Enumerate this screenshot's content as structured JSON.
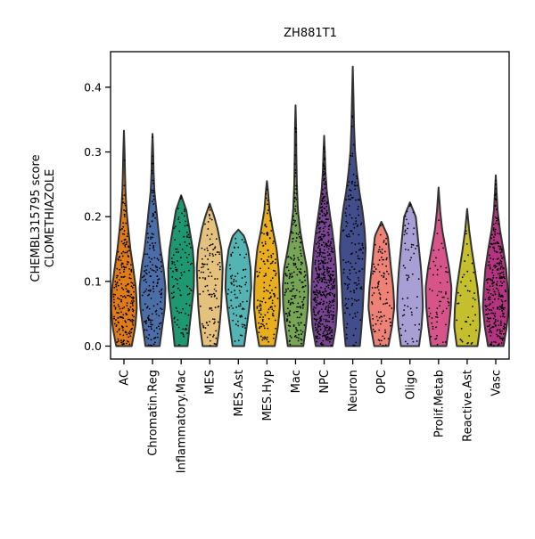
{
  "chart_data": {
    "type": "violin",
    "title": "ZH881T1",
    "ylabel_line1": "CHEMBL315795 score",
    "ylabel_line2": "CLOMETHIAZOLE",
    "xlabel": "",
    "ylim": [
      -0.02,
      0.455
    ],
    "yticks": [
      0.0,
      0.1,
      0.2,
      0.3,
      0.4
    ],
    "ytick_labels": [
      "0.0",
      "0.1",
      "0.2",
      "0.3",
      "0.4"
    ],
    "grid": false,
    "legend": "none",
    "categories": [
      "AC",
      "Chromatin.Reg",
      "Inflammatory.Mac",
      "MES",
      "MES.Ast",
      "MES.Hyp",
      "Mac",
      "NPC",
      "Neuron",
      "OPC",
      "Oligo",
      "Prolif.Metab",
      "Reactive.Ast",
      "Vasc"
    ],
    "series": [
      {
        "category": "AC",
        "color": "#e07b1a",
        "min": 0.0,
        "max": 0.333,
        "n_points": 230,
        "density": [
          [
            0.0,
            0.6
          ],
          [
            0.03,
            0.88
          ],
          [
            0.06,
            1.0
          ],
          [
            0.09,
            0.92
          ],
          [
            0.12,
            0.72
          ],
          [
            0.15,
            0.5
          ],
          [
            0.18,
            0.34
          ],
          [
            0.21,
            0.2
          ],
          [
            0.24,
            0.12
          ],
          [
            0.27,
            0.08
          ],
          [
            0.3,
            0.05
          ],
          [
            0.333,
            0.0
          ]
        ]
      },
      {
        "category": "Chromatin.Reg",
        "color": "#4c6ea8",
        "min": 0.0,
        "max": 0.328,
        "n_points": 170,
        "density": [
          [
            0.0,
            0.55
          ],
          [
            0.03,
            0.75
          ],
          [
            0.06,
            0.95
          ],
          [
            0.09,
            1.0
          ],
          [
            0.12,
            0.85
          ],
          [
            0.15,
            0.62
          ],
          [
            0.18,
            0.45
          ],
          [
            0.21,
            0.3
          ],
          [
            0.24,
            0.14
          ],
          [
            0.27,
            0.08
          ],
          [
            0.3,
            0.05
          ],
          [
            0.328,
            0.0
          ]
        ]
      },
      {
        "category": "Inflammatory.Mac",
        "color": "#1e9870",
        "min": 0.0,
        "max": 0.233,
        "n_points": 110,
        "density": [
          [
            0.0,
            0.5
          ],
          [
            0.03,
            0.65
          ],
          [
            0.06,
            0.82
          ],
          [
            0.09,
            0.98
          ],
          [
            0.12,
            1.0
          ],
          [
            0.15,
            0.9
          ],
          [
            0.18,
            0.65
          ],
          [
            0.21,
            0.4
          ],
          [
            0.233,
            0.0
          ]
        ]
      },
      {
        "category": "MES",
        "color": "#e4c17c",
        "min": 0.0,
        "max": 0.22,
        "n_points": 110,
        "density": [
          [
            0.0,
            0.55
          ],
          [
            0.03,
            0.75
          ],
          [
            0.06,
            0.88
          ],
          [
            0.09,
            0.95
          ],
          [
            0.12,
            1.0
          ],
          [
            0.15,
            0.9
          ],
          [
            0.18,
            0.62
          ],
          [
            0.2,
            0.35
          ],
          [
            0.22,
            0.0
          ]
        ]
      },
      {
        "category": "MES.Ast",
        "color": "#54b3b3",
        "min": 0.0,
        "max": 0.18,
        "n_points": 80,
        "density": [
          [
            0.0,
            0.45
          ],
          [
            0.03,
            0.65
          ],
          [
            0.06,
            0.85
          ],
          [
            0.09,
            1.0
          ],
          [
            0.12,
            0.95
          ],
          [
            0.15,
            0.75
          ],
          [
            0.17,
            0.45
          ],
          [
            0.18,
            0.0
          ]
        ]
      },
      {
        "category": "MES.Hyp",
        "color": "#e8ae1e",
        "min": 0.0,
        "max": 0.255,
        "n_points": 140,
        "density": [
          [
            0.0,
            0.6
          ],
          [
            0.03,
            0.85
          ],
          [
            0.06,
            1.0
          ],
          [
            0.09,
            0.98
          ],
          [
            0.12,
            0.9
          ],
          [
            0.15,
            0.75
          ],
          [
            0.18,
            0.45
          ],
          [
            0.21,
            0.2
          ],
          [
            0.24,
            0.08
          ],
          [
            0.255,
            0.0
          ]
        ]
      },
      {
        "category": "Mac",
        "color": "#76a555",
        "min": 0.0,
        "max": 0.372,
        "n_points": 200,
        "density": [
          [
            0.0,
            0.6
          ],
          [
            0.03,
            0.8
          ],
          [
            0.06,
            0.95
          ],
          [
            0.09,
            1.0
          ],
          [
            0.12,
            0.88
          ],
          [
            0.15,
            0.6
          ],
          [
            0.18,
            0.35
          ],
          [
            0.21,
            0.18
          ],
          [
            0.25,
            0.1
          ],
          [
            0.3,
            0.06
          ],
          [
            0.34,
            0.04
          ],
          [
            0.372,
            0.0
          ]
        ]
      },
      {
        "category": "NPC",
        "color": "#7a4494",
        "min": 0.0,
        "max": 0.325,
        "n_points": 500,
        "density": [
          [
            0.0,
            0.65
          ],
          [
            0.03,
            0.9
          ],
          [
            0.06,
            1.0
          ],
          [
            0.09,
            0.98
          ],
          [
            0.12,
            0.92
          ],
          [
            0.15,
            0.8
          ],
          [
            0.18,
            0.62
          ],
          [
            0.21,
            0.4
          ],
          [
            0.24,
            0.2
          ],
          [
            0.27,
            0.1
          ],
          [
            0.3,
            0.05
          ],
          [
            0.325,
            0.0
          ]
        ]
      },
      {
        "category": "Neuron",
        "color": "#424e8c",
        "min": 0.0,
        "max": 0.432,
        "n_points": 150,
        "density": [
          [
            0.0,
            0.55
          ],
          [
            0.03,
            0.68
          ],
          [
            0.06,
            0.78
          ],
          [
            0.09,
            0.85
          ],
          [
            0.12,
            0.92
          ],
          [
            0.15,
            1.0
          ],
          [
            0.18,
            0.92
          ],
          [
            0.21,
            0.75
          ],
          [
            0.24,
            0.5
          ],
          [
            0.27,
            0.32
          ],
          [
            0.3,
            0.18
          ],
          [
            0.34,
            0.1
          ],
          [
            0.38,
            0.06
          ],
          [
            0.432,
            0.0
          ]
        ]
      },
      {
        "category": "OPC",
        "color": "#ef8276",
        "min": 0.0,
        "max": 0.192,
        "n_points": 100,
        "density": [
          [
            0.0,
            0.55
          ],
          [
            0.03,
            0.82
          ],
          [
            0.06,
            1.0
          ],
          [
            0.09,
            0.92
          ],
          [
            0.12,
            0.75
          ],
          [
            0.15,
            0.6
          ],
          [
            0.17,
            0.5
          ],
          [
            0.192,
            0.0
          ]
        ]
      },
      {
        "category": "Oligo",
        "color": "#a8a0d4",
        "min": 0.0,
        "max": 0.222,
        "n_points": 60,
        "density": [
          [
            0.0,
            0.7
          ],
          [
            0.03,
            0.9
          ],
          [
            0.06,
            1.0
          ],
          [
            0.09,
            0.95
          ],
          [
            0.12,
            0.85
          ],
          [
            0.15,
            0.7
          ],
          [
            0.18,
            0.55
          ],
          [
            0.2,
            0.45
          ],
          [
            0.222,
            0.0
          ]
        ]
      },
      {
        "category": "Prolif.Metab",
        "color": "#d6548a",
        "min": 0.0,
        "max": 0.245,
        "n_points": 60,
        "density": [
          [
            0.0,
            0.6
          ],
          [
            0.03,
            0.8
          ],
          [
            0.06,
            0.95
          ],
          [
            0.09,
            1.0
          ],
          [
            0.12,
            0.82
          ],
          [
            0.15,
            0.55
          ],
          [
            0.18,
            0.28
          ],
          [
            0.21,
            0.12
          ],
          [
            0.245,
            0.0
          ]
        ]
      },
      {
        "category": "Reactive.Ast",
        "color": "#c5bf2e",
        "min": 0.0,
        "max": 0.212,
        "n_points": 40,
        "density": [
          [
            0.0,
            0.8
          ],
          [
            0.03,
            1.0
          ],
          [
            0.06,
            0.95
          ],
          [
            0.09,
            0.8
          ],
          [
            0.12,
            0.58
          ],
          [
            0.15,
            0.35
          ],
          [
            0.18,
            0.15
          ],
          [
            0.212,
            0.0
          ]
        ]
      },
      {
        "category": "Vasc",
        "color": "#b43481",
        "min": 0.0,
        "max": 0.264,
        "n_points": 300,
        "density": [
          [
            0.0,
            0.6
          ],
          [
            0.03,
            0.85
          ],
          [
            0.06,
            1.0
          ],
          [
            0.09,
            0.92
          ],
          [
            0.12,
            0.8
          ],
          [
            0.15,
            0.58
          ],
          [
            0.18,
            0.32
          ],
          [
            0.21,
            0.14
          ],
          [
            0.24,
            0.06
          ],
          [
            0.264,
            0.0
          ]
        ]
      }
    ]
  }
}
